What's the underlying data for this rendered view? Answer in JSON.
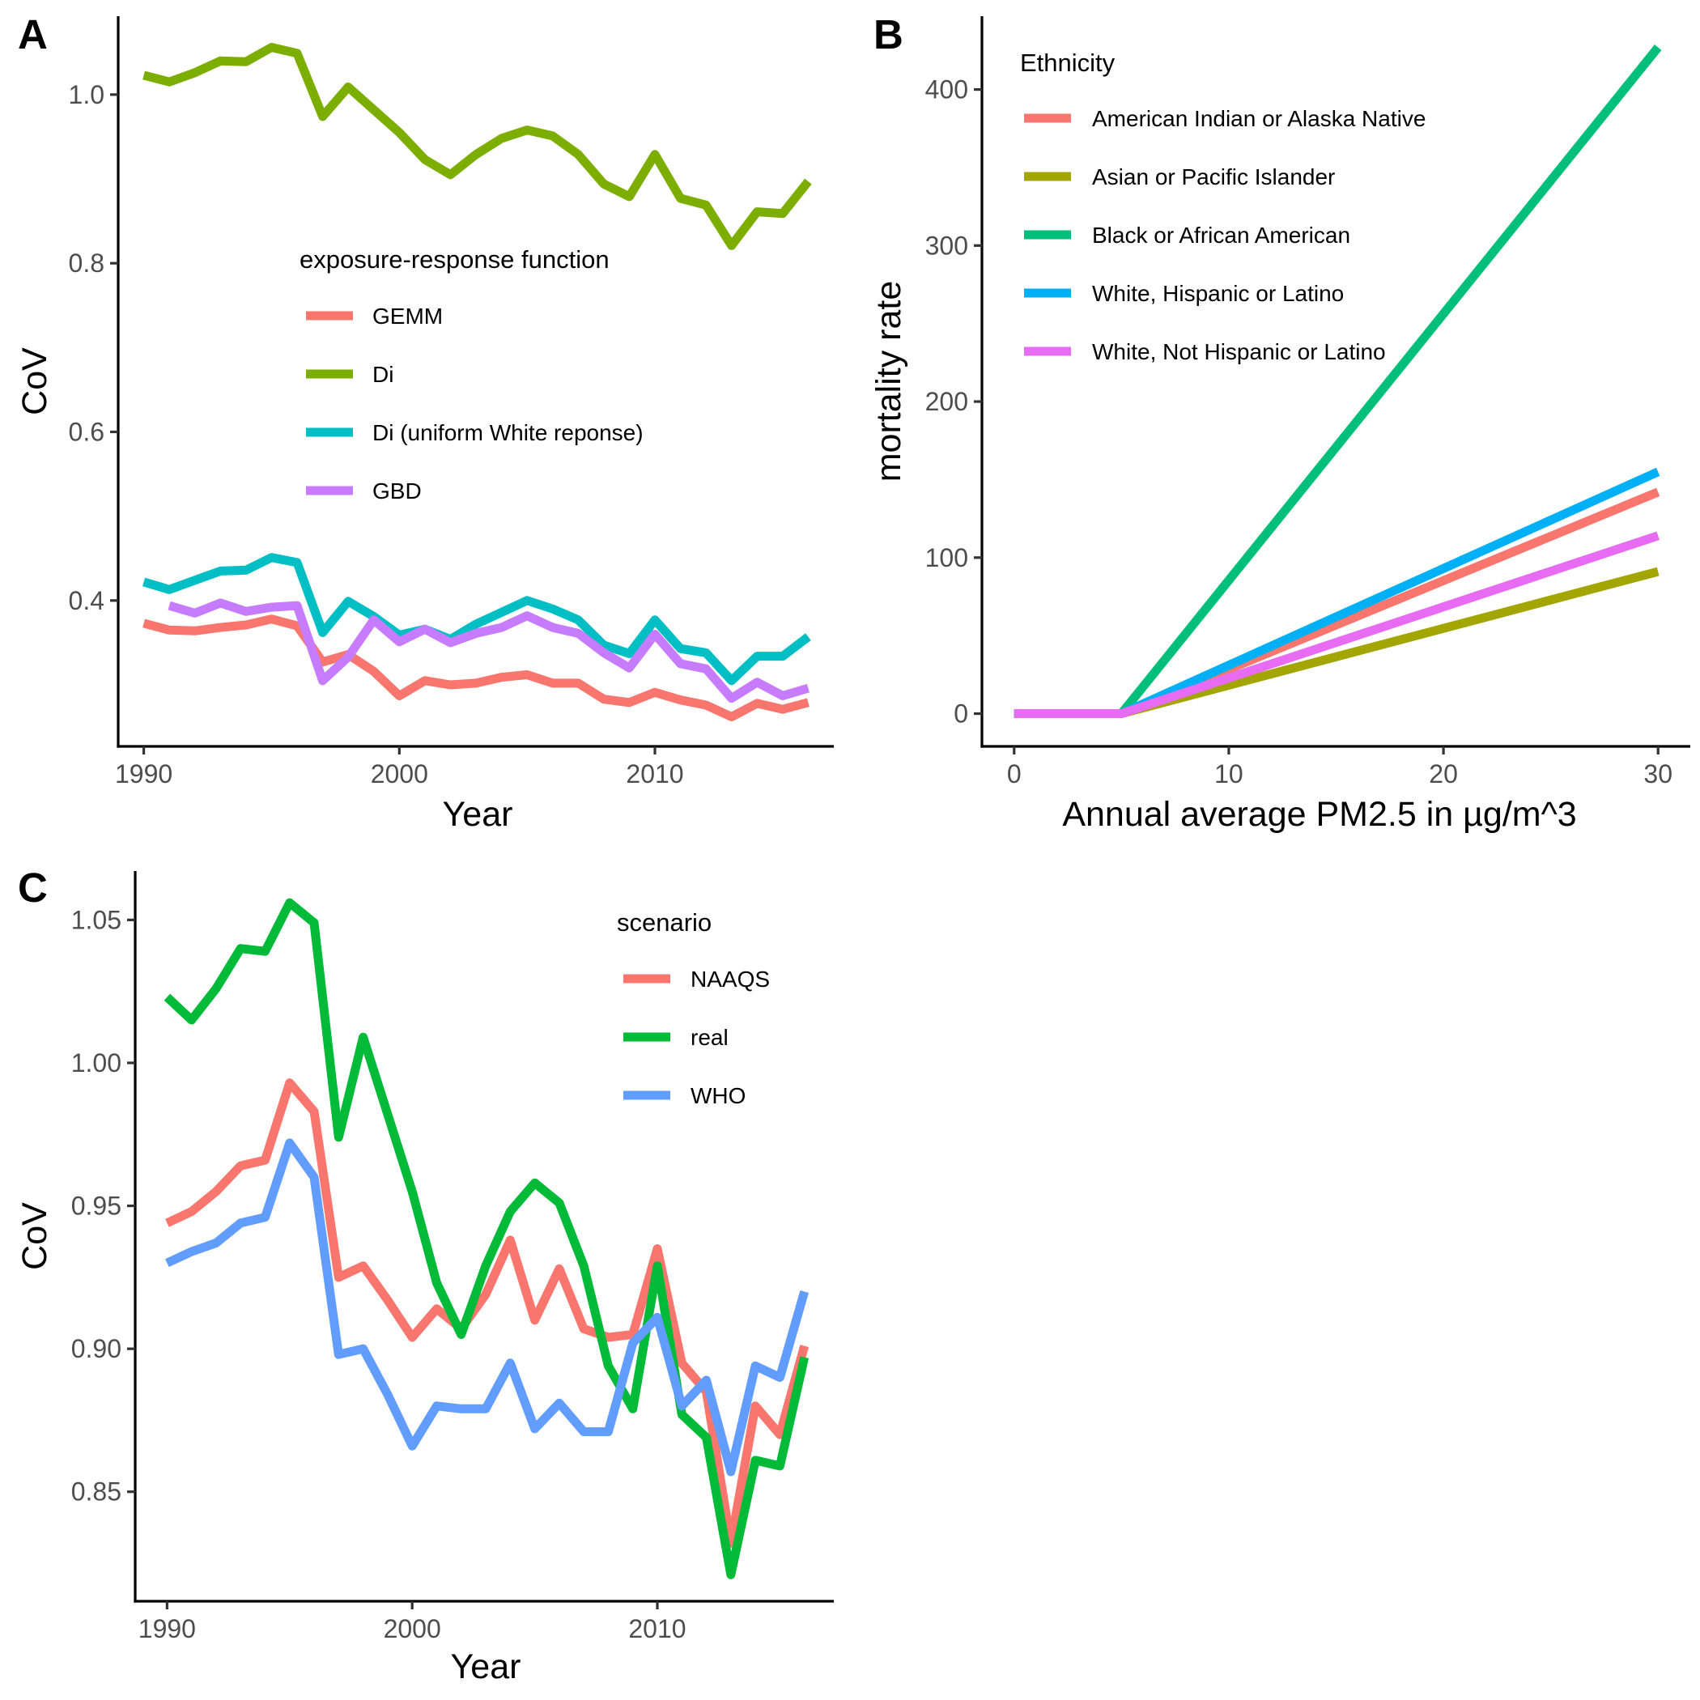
{
  "panels": [
    "A",
    "B",
    "C"
  ],
  "chart_data": [
    {
      "panel": "A",
      "type": "line",
      "xlabel": "Year",
      "ylabel": "CoV",
      "xlim": [
        1989,
        2017
      ],
      "ylim": [
        0.227,
        1.093
      ],
      "xticks": [
        1990,
        2000,
        2010
      ],
      "yticks": [
        0.4,
        0.6,
        0.8,
        1.0
      ],
      "ytick_labels": [
        "0.4",
        "0.6",
        "0.8",
        "1.0"
      ],
      "grid": false,
      "legend": {
        "title": "exposure-response function",
        "placement": "center-right"
      },
      "x": [
        1990,
        1991,
        1992,
        1993,
        1994,
        1995,
        1996,
        1997,
        1998,
        1999,
        2000,
        2001,
        2002,
        2003,
        2004,
        2005,
        2006,
        2007,
        2008,
        2009,
        2010,
        2011,
        2012,
        2013,
        2014,
        2015,
        2016
      ],
      "series": [
        {
          "name": "GEMM",
          "color": "#F8766D",
          "values": [
            0.373,
            0.365,
            0.364,
            0.368,
            0.371,
            0.378,
            0.37,
            0.327,
            0.336,
            0.316,
            0.287,
            0.305,
            0.3,
            0.302,
            0.309,
            0.312,
            0.302,
            0.302,
            0.283,
            0.279,
            0.291,
            0.282,
            0.276,
            0.262,
            0.278,
            0.271,
            0.279
          ]
        },
        {
          "name": "Di",
          "color": "#7CAE00",
          "values": [
            1.023,
            1.015,
            1.026,
            1.04,
            1.039,
            1.056,
            1.049,
            0.974,
            1.009,
            0.982,
            0.955,
            0.923,
            0.905,
            0.929,
            0.948,
            0.958,
            0.951,
            0.929,
            0.894,
            0.879,
            0.929,
            0.877,
            0.869,
            0.821,
            0.861,
            0.859,
            0.897
          ]
        },
        {
          "name": "Di (uniform White reponse)",
          "color": "#00BFC4",
          "values": [
            0.422,
            0.413,
            0.424,
            0.435,
            0.436,
            0.451,
            0.445,
            0.362,
            0.399,
            0.381,
            0.359,
            0.366,
            0.354,
            0.372,
            0.386,
            0.4,
            0.39,
            0.377,
            0.347,
            0.337,
            0.377,
            0.343,
            0.338,
            0.305,
            0.334,
            0.334,
            0.357
          ]
        },
        {
          "name": "GBD",
          "color": "#C77CFF",
          "values": [
            null,
            0.394,
            0.385,
            0.397,
            0.387,
            0.392,
            0.394,
            0.305,
            0.333,
            0.377,
            0.351,
            0.366,
            0.35,
            0.361,
            0.368,
            0.382,
            0.368,
            0.361,
            0.338,
            0.32,
            0.36,
            0.325,
            0.319,
            0.284,
            0.303,
            0.287,
            0.296
          ]
        }
      ]
    },
    {
      "panel": "B",
      "type": "line",
      "xlabel": "Annual average PM2.5 in µg/m^3",
      "ylabel": "mortality rate",
      "xlim": [
        -1.5,
        31.5
      ],
      "ylim": [
        -21,
        447
      ],
      "xticks": [
        0,
        10,
        20,
        30
      ],
      "yticks": [
        0,
        100,
        200,
        300,
        400
      ],
      "grid": false,
      "legend": {
        "title": "Ethnicity",
        "placement": "top-left"
      },
      "x": [
        0,
        5,
        30
      ],
      "series": [
        {
          "name": "American Indian or Alaska Native",
          "color": "#F8766D",
          "values": [
            0,
            0,
            142
          ]
        },
        {
          "name": "Asian or Pacific Islander",
          "color": "#A3A500",
          "values": [
            0,
            0,
            91
          ]
        },
        {
          "name": "Black or African American",
          "color": "#00BF7D",
          "values": [
            0,
            0,
            427
          ]
        },
        {
          "name": "White, Hispanic or Latino",
          "color": "#00B0F6",
          "values": [
            0,
            0,
            155
          ]
        },
        {
          "name": "White, Not Hispanic or Latino",
          "color": "#E76BF3",
          "values": [
            0,
            0,
            114
          ]
        }
      ]
    },
    {
      "panel": "C",
      "type": "line",
      "xlabel": "Year",
      "ylabel": "CoV",
      "xlim": [
        1988.7,
        2017.2
      ],
      "ylim": [
        0.8117,
        1.0671
      ],
      "xticks": [
        1990,
        2000,
        2010
      ],
      "yticks": [
        0.85,
        0.9,
        0.95,
        1.0,
        1.05
      ],
      "ytick_labels": [
        "0.85",
        "0.90",
        "0.95",
        "1.00",
        "1.05"
      ],
      "grid": false,
      "legend": {
        "title": "scenario",
        "placement": "top-right"
      },
      "x": [
        1990,
        1991,
        1992,
        1993,
        1994,
        1995,
        1996,
        1997,
        1998,
        1999,
        2000,
        2001,
        2002,
        2003,
        2004,
        2005,
        2006,
        2007,
        2008,
        2009,
        2010,
        2011,
        2012,
        2013,
        2014,
        2015,
        2016
      ],
      "series": [
        {
          "name": "NAAQS",
          "color": "#F8766D",
          "values": [
            0.944,
            0.948,
            0.955,
            0.964,
            0.966,
            0.993,
            0.983,
            0.925,
            0.929,
            0.917,
            0.904,
            0.914,
            0.907,
            0.919,
            0.938,
            0.91,
            0.928,
            0.907,
            0.904,
            0.905,
            0.935,
            0.895,
            0.885,
            0.832,
            0.88,
            0.87,
            0.901
          ]
        },
        {
          "name": "real",
          "color": "#00BA38",
          "values": [
            1.023,
            1.015,
            1.026,
            1.04,
            1.039,
            1.056,
            1.049,
            0.974,
            1.009,
            0.982,
            0.955,
            0.923,
            0.905,
            0.929,
            0.948,
            0.958,
            0.951,
            0.929,
            0.894,
            0.879,
            0.929,
            0.877,
            0.869,
            0.821,
            0.861,
            0.859,
            0.897
          ]
        },
        {
          "name": "WHO",
          "color": "#619CFF",
          "values": [
            0.93,
            0.934,
            0.937,
            0.944,
            0.946,
            0.972,
            0.96,
            0.898,
            0.9,
            0.884,
            0.866,
            0.88,
            0.879,
            0.879,
            0.895,
            0.872,
            0.881,
            0.871,
            0.871,
            0.902,
            0.911,
            0.88,
            0.889,
            0.857,
            0.894,
            0.89,
            0.92
          ]
        }
      ]
    }
  ]
}
